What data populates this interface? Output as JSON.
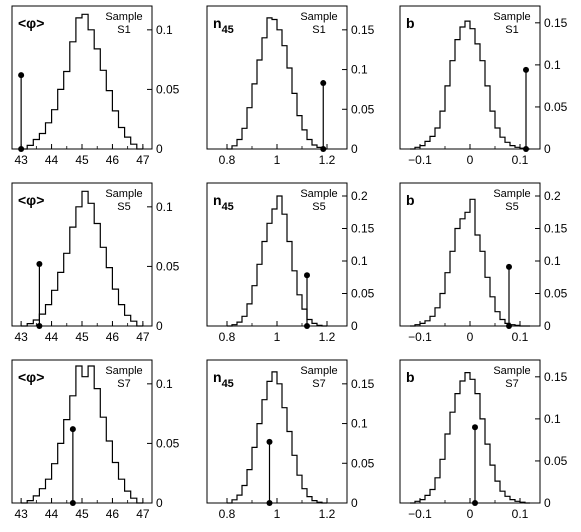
{
  "chart_data": [
    {
      "type": "histogram",
      "variable": "<φ>",
      "sample": [
        "Sample",
        "S1"
      ],
      "xlim": [
        42.7,
        47.3
      ],
      "ylim": [
        0,
        0.12
      ],
      "xticks": [
        43,
        44,
        45,
        46,
        47
      ],
      "yticks": [
        0,
        0.05,
        0.1
      ],
      "bin_edges": [
        43,
        43.2,
        43.4,
        43.6,
        43.8,
        44,
        44.2,
        44.4,
        44.6,
        44.8,
        45,
        45.2,
        45.4,
        45.6,
        45.8,
        46,
        46.2,
        46.4,
        46.6,
        46.8,
        47
      ],
      "values": [
        0,
        0.003,
        0.008,
        0.013,
        0.022,
        0.033,
        0.05,
        0.065,
        0.09,
        0.11,
        0.113,
        0.1,
        0.084,
        0.066,
        0.049,
        0.032,
        0.018,
        0.01,
        0.004,
        0
      ],
      "marker": {
        "x": 43.0,
        "y": 0.062
      }
    },
    {
      "type": "histogram",
      "variable": "n45",
      "sample": [
        "Sample",
        "S1"
      ],
      "xlim": [
        0.72,
        1.28
      ],
      "ylim": [
        0,
        0.18
      ],
      "xticks": [
        0.8,
        1,
        1.2
      ],
      "yticks": [
        0,
        0.05,
        0.1,
        0.15
      ],
      "bin_edges": [
        0.8,
        0.82,
        0.84,
        0.86,
        0.88,
        0.9,
        0.92,
        0.94,
        0.96,
        0.98,
        1.0,
        1.02,
        1.04,
        1.06,
        1.08,
        1.1,
        1.12,
        1.14,
        1.16,
        1.18,
        1.2
      ],
      "values": [
        0,
        0.004,
        0.012,
        0.026,
        0.052,
        0.082,
        0.112,
        0.14,
        0.165,
        0.163,
        0.15,
        0.13,
        0.102,
        0.07,
        0.042,
        0.024,
        0.012,
        0.005,
        0.002,
        0
      ],
      "marker": {
        "x": 1.185,
        "y": 0.083
      }
    },
    {
      "type": "histogram",
      "variable": "b",
      "sample": [
        "Sample",
        "S1"
      ],
      "xlim": [
        -0.14,
        0.14
      ],
      "ylim": [
        0,
        0.17
      ],
      "xticks": [
        -0.1,
        0,
        0.1
      ],
      "yticks": [
        0,
        0.05,
        0.1,
        0.15
      ],
      "bin_edges": [
        -0.12,
        -0.11,
        -0.1,
        -0.09,
        -0.08,
        -0.07,
        -0.06,
        -0.05,
        -0.04,
        -0.03,
        -0.02,
        -0.01,
        0,
        0.01,
        0.02,
        0.03,
        0.04,
        0.05,
        0.06,
        0.07,
        0.08,
        0.09,
        0.1,
        0.11,
        0.12
      ],
      "values": [
        0,
        0.002,
        0.004,
        0.009,
        0.015,
        0.025,
        0.045,
        0.075,
        0.105,
        0.13,
        0.145,
        0.152,
        0.143,
        0.125,
        0.105,
        0.075,
        0.045,
        0.025,
        0.014,
        0.008,
        0.004,
        0.002,
        0.001,
        0
      ],
      "marker": {
        "x": 0.112,
        "y": 0.094
      }
    },
    {
      "type": "histogram",
      "variable": "<φ>",
      "sample": [
        "Sample",
        "S5"
      ],
      "xlim": [
        42.7,
        47.3
      ],
      "ylim": [
        0,
        0.12
      ],
      "xticks": [
        43,
        44,
        45,
        46,
        47
      ],
      "yticks": [
        0,
        0.05,
        0.1
      ],
      "bin_edges": [
        43,
        43.2,
        43.4,
        43.6,
        43.8,
        44,
        44.2,
        44.4,
        44.6,
        44.8,
        45,
        45.2,
        45.4,
        45.6,
        45.8,
        46,
        46.2,
        46.4,
        46.6,
        46.8,
        47
      ],
      "values": [
        0,
        0.002,
        0.005,
        0.01,
        0.018,
        0.03,
        0.045,
        0.061,
        0.083,
        0.1,
        0.113,
        0.103,
        0.086,
        0.066,
        0.049,
        0.031,
        0.018,
        0.009,
        0.004,
        0
      ],
      "marker": {
        "x": 43.6,
        "y": 0.052
      }
    },
    {
      "type": "histogram",
      "variable": "n45",
      "sample": [
        "Sample",
        "S5"
      ],
      "xlim": [
        0.72,
        1.28
      ],
      "ylim": [
        0,
        0.22
      ],
      "xticks": [
        0.8,
        1,
        1.2
      ],
      "yticks": [
        0,
        0.05,
        0.1,
        0.15,
        0.2
      ],
      "bin_edges": [
        0.8,
        0.82,
        0.84,
        0.86,
        0.88,
        0.9,
        0.92,
        0.94,
        0.96,
        0.98,
        1.0,
        1.02,
        1.04,
        1.06,
        1.08,
        1.1,
        1.12,
        1.14,
        1.16,
        1.18,
        1.2
      ],
      "values": [
        0,
        0.002,
        0.006,
        0.015,
        0.034,
        0.062,
        0.095,
        0.13,
        0.158,
        0.18,
        0.2,
        0.172,
        0.13,
        0.085,
        0.048,
        0.026,
        0.01,
        0.004,
        0.001,
        0
      ],
      "marker": {
        "x": 1.12,
        "y": 0.078
      }
    },
    {
      "type": "histogram",
      "variable": "b",
      "sample": [
        "Sample",
        "S5"
      ],
      "xlim": [
        -0.14,
        0.14
      ],
      "ylim": [
        0,
        0.22
      ],
      "xticks": [
        -0.1,
        0,
        0.1
      ],
      "yticks": [
        0,
        0.05,
        0.1,
        0.15,
        0.2
      ],
      "bin_edges": [
        -0.12,
        -0.11,
        -0.1,
        -0.09,
        -0.08,
        -0.07,
        -0.06,
        -0.05,
        -0.04,
        -0.03,
        -0.02,
        -0.01,
        0,
        0.01,
        0.02,
        0.03,
        0.04,
        0.05,
        0.06,
        0.07,
        0.08,
        0.09,
        0.1,
        0.11,
        0.12
      ],
      "values": [
        0,
        0.002,
        0.004,
        0.008,
        0.015,
        0.028,
        0.05,
        0.082,
        0.115,
        0.15,
        0.165,
        0.175,
        0.195,
        0.14,
        0.115,
        0.075,
        0.045,
        0.022,
        0.01,
        0.004,
        0.002,
        0.001,
        0,
        0
      ],
      "marker": {
        "x": 0.078,
        "y": 0.091
      }
    },
    {
      "type": "histogram",
      "variable": "<φ>",
      "sample": [
        "Sample",
        "S7"
      ],
      "xlim": [
        42.7,
        47.3
      ],
      "ylim": [
        0,
        0.12
      ],
      "xticks": [
        43,
        44,
        45,
        46,
        47
      ],
      "yticks": [
        0,
        0.05,
        0.1
      ],
      "bin_edges": [
        43,
        43.2,
        43.4,
        43.6,
        43.8,
        44,
        44.2,
        44.4,
        44.6,
        44.8,
        45,
        45.2,
        45.4,
        45.6,
        45.8,
        46,
        46.2,
        46.4,
        46.6,
        46.8,
        47
      ],
      "values": [
        0,
        0.002,
        0.006,
        0.012,
        0.02,
        0.033,
        0.05,
        0.07,
        0.09,
        0.115,
        0.106,
        0.115,
        0.096,
        0.072,
        0.052,
        0.034,
        0.02,
        0.01,
        0.004,
        0
      ],
      "marker": {
        "x": 44.7,
        "y": 0.062
      }
    },
    {
      "type": "histogram",
      "variable": "n45",
      "sample": [
        "Sample",
        "S7"
      ],
      "xlim": [
        0.72,
        1.28
      ],
      "ylim": [
        0,
        0.18
      ],
      "xticks": [
        0.8,
        1,
        1.2
      ],
      "yticks": [
        0,
        0.05,
        0.1,
        0.15
      ],
      "bin_edges": [
        0.8,
        0.82,
        0.84,
        0.86,
        0.88,
        0.9,
        0.92,
        0.94,
        0.96,
        0.98,
        1.0,
        1.02,
        1.04,
        1.06,
        1.08,
        1.1,
        1.12,
        1.14,
        1.16,
        1.18,
        1.2
      ],
      "values": [
        0,
        0.004,
        0.01,
        0.022,
        0.042,
        0.07,
        0.1,
        0.13,
        0.153,
        0.165,
        0.15,
        0.12,
        0.09,
        0.06,
        0.035,
        0.018,
        0.008,
        0.003,
        0.001,
        0
      ],
      "marker": {
        "x": 0.97,
        "y": 0.077
      }
    },
    {
      "type": "histogram",
      "variable": "b",
      "sample": [
        "Sample",
        "S7"
      ],
      "xlim": [
        -0.14,
        0.14
      ],
      "ylim": [
        0,
        0.17
      ],
      "xticks": [
        -0.1,
        0,
        0.1
      ],
      "yticks": [
        0,
        0.05,
        0.1,
        0.15
      ],
      "bin_edges": [
        -0.12,
        -0.11,
        -0.1,
        -0.09,
        -0.08,
        -0.07,
        -0.06,
        -0.05,
        -0.04,
        -0.03,
        -0.02,
        -0.01,
        0,
        0.01,
        0.02,
        0.03,
        0.04,
        0.05,
        0.06,
        0.07,
        0.08,
        0.09,
        0.1,
        0.11,
        0.12
      ],
      "values": [
        0,
        0.002,
        0.004,
        0.009,
        0.016,
        0.03,
        0.052,
        0.082,
        0.108,
        0.13,
        0.145,
        0.155,
        0.147,
        0.13,
        0.1,
        0.07,
        0.045,
        0.026,
        0.014,
        0.008,
        0.004,
        0.002,
        0.001,
        0
      ],
      "marker": {
        "x": 0.01,
        "y": 0.09
      }
    }
  ]
}
